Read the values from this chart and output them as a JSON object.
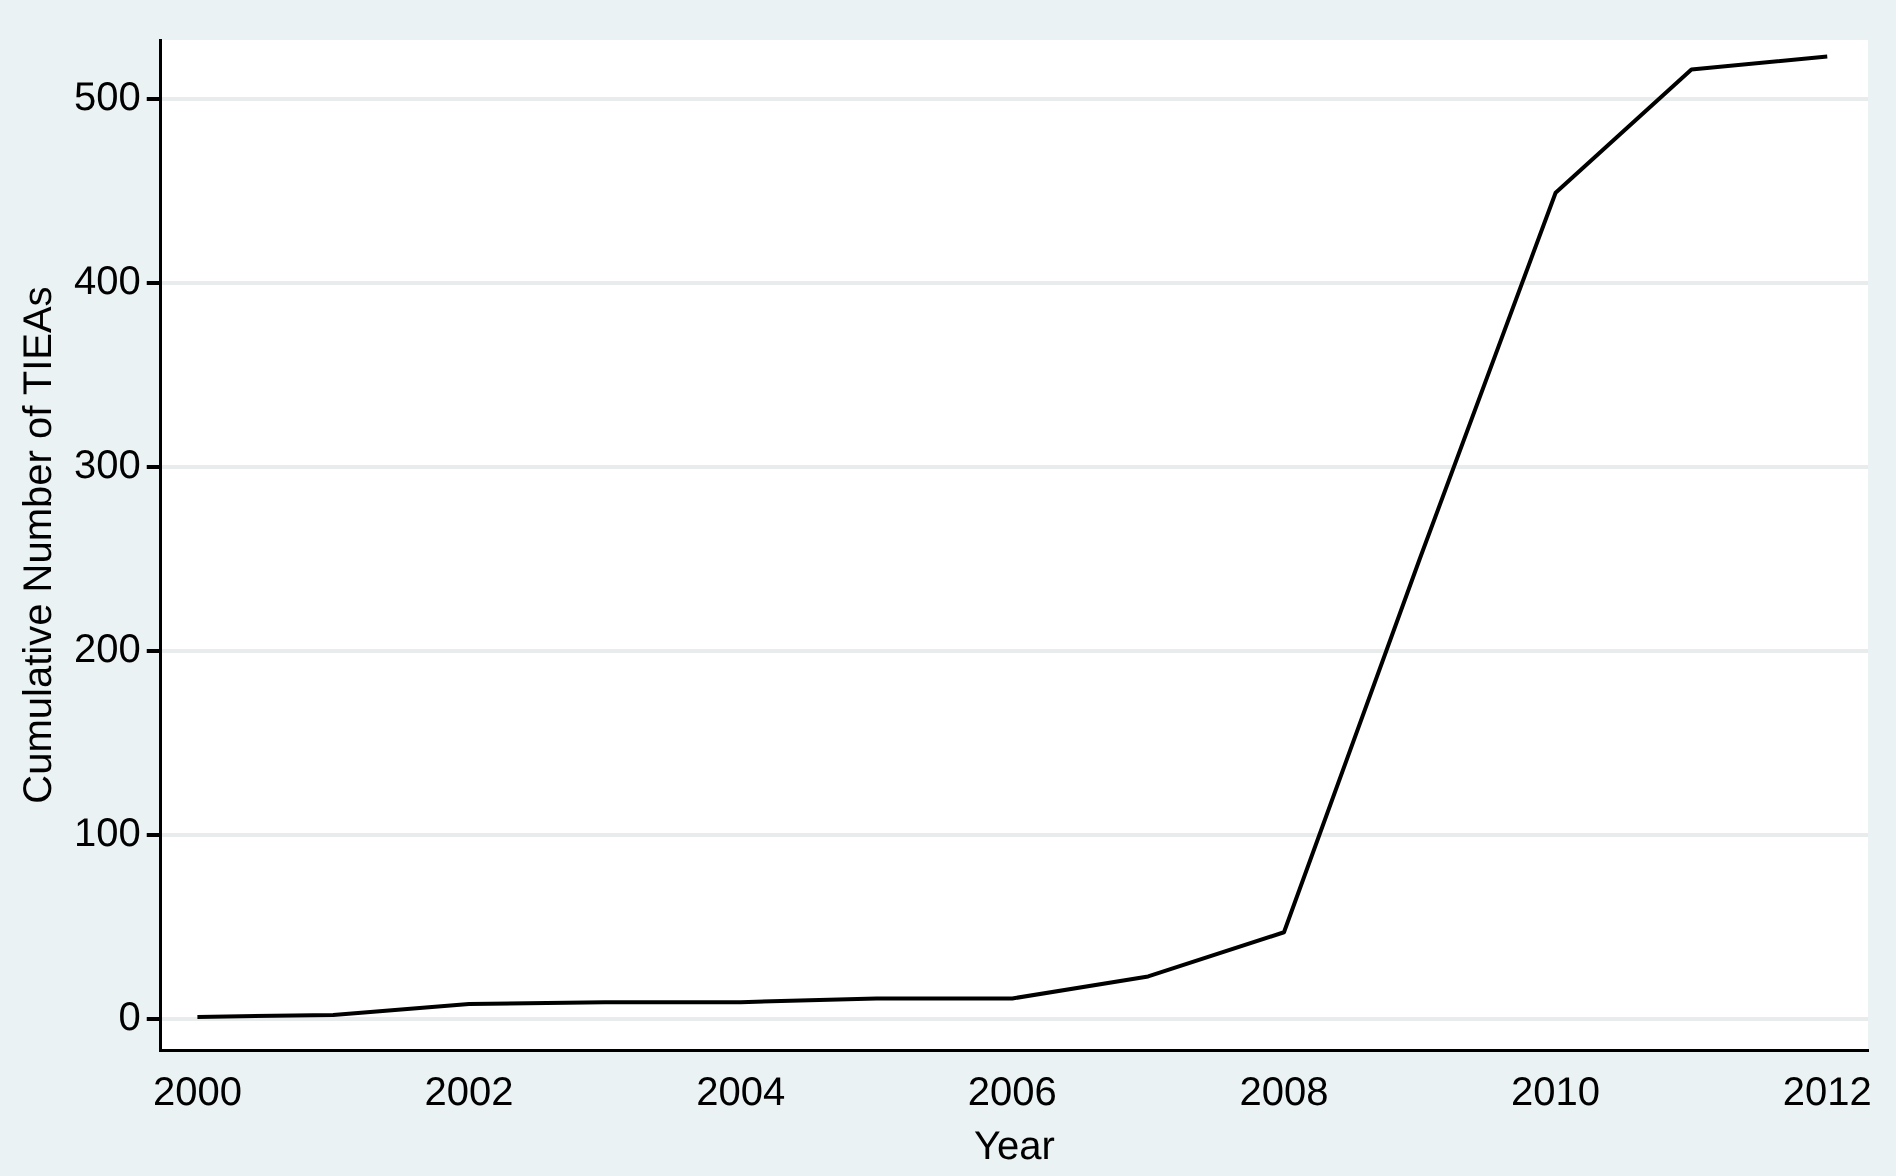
{
  "chart_data": {
    "type": "line",
    "xlabel": "Year",
    "ylabel": "Cumulative Number of TIEAs",
    "x": [
      2000,
      2001,
      2002,
      2003,
      2004,
      2005,
      2006,
      2007,
      2008,
      2009,
      2010,
      2011,
      2012
    ],
    "series": [
      {
        "color": "#000000",
        "values": [
          1,
          2,
          8,
          9,
          9,
          11,
          11,
          23,
          47,
          250,
          449,
          516,
          523
        ]
      }
    ],
    "xlim": [
      1999.73,
      2012.3
    ],
    "xticks": [
      2000,
      2002,
      2004,
      2006,
      2008,
      2010,
      2012
    ],
    "ylim": [
      -17,
      532
    ],
    "yticks": [
      0,
      100,
      200,
      300,
      400,
      500
    ],
    "grid": "y",
    "legend": false,
    "marker": "none",
    "line_style": "solid"
  }
}
